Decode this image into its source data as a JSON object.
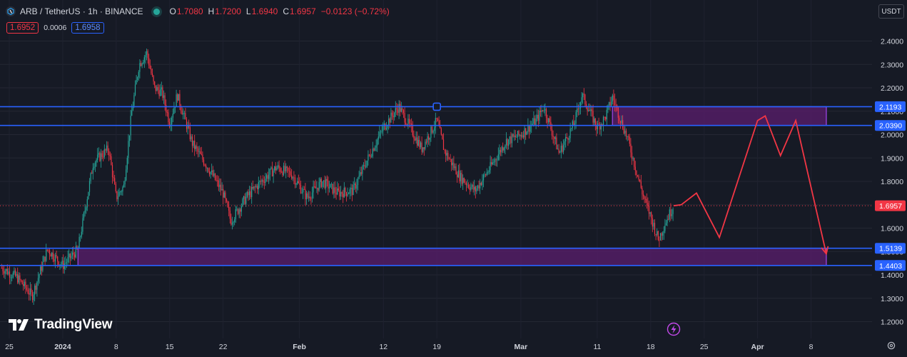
{
  "header": {
    "symbol": "ARB / TetherUS · 1h · BINANCE",
    "ohlc": [
      {
        "key": "O",
        "value": "1.7080"
      },
      {
        "key": "H",
        "value": "1.7200"
      },
      {
        "key": "L",
        "value": "1.6940"
      },
      {
        "key": "C",
        "value": "1.6957"
      }
    ],
    "change": "−0.0123 (−0.72%)",
    "sell_price": "1.6952",
    "spread": "0.0006",
    "buy_price": "1.6958"
  },
  "currency_button": "USDT",
  "brand": "TradingView",
  "colors": {
    "background": "#161a25",
    "up": "#26a69a",
    "down": "#f23645",
    "level_line": "#2962ff",
    "zone_fill": "#5b1e6e",
    "zone_border": "#8e3ecf",
    "projection": "#f23645"
  },
  "chart_data": {
    "type": "candlestick",
    "symbol": "ARB/USDT",
    "interval": "1h",
    "exchange": "BINANCE",
    "x_labels": [
      "25",
      "2024",
      "8",
      "15",
      "22",
      "Feb",
      "12",
      "19",
      "Mar",
      "11",
      "18",
      "25",
      "Apr",
      "8"
    ],
    "y_ticks": [
      "2.4000",
      "2.3000",
      "2.2000",
      "2.1000",
      "2.0000",
      "1.9000",
      "1.8000",
      "1.7000",
      "1.6000",
      "1.5000",
      "1.4000",
      "1.3000",
      "1.2000"
    ],
    "ylim": [
      1.15,
      2.5
    ],
    "price_path": [
      [
        "Dec 24",
        1.43
      ],
      [
        "Dec 26",
        1.39
      ],
      [
        "Dec 28",
        1.31
      ],
      [
        "Dec 30",
        1.51
      ],
      [
        "Jan 1",
        1.44
      ],
      [
        "Jan 3",
        1.51
      ],
      [
        "Jan 5",
        1.88
      ],
      [
        "Jan 7",
        1.94
      ],
      [
        "Jan 8",
        1.73
      ],
      [
        "Jan 9",
        1.78
      ],
      [
        "Jan 10",
        2.09
      ],
      [
        "Jan 11",
        2.3
      ],
      [
        "Jan 12",
        2.35
      ],
      [
        "Jan 13",
        2.2
      ],
      [
        "Jan 14",
        2.18
      ],
      [
        "Jan 15",
        2.05
      ],
      [
        "Jan 16",
        2.17
      ],
      [
        "Jan 18",
        1.96
      ],
      [
        "Jan 20",
        1.86
      ],
      [
        "Jan 22",
        1.75
      ],
      [
        "Jan 23",
        1.63
      ],
      [
        "Jan 25",
        1.73
      ],
      [
        "Jan 27",
        1.8
      ],
      [
        "Jan 29",
        1.86
      ],
      [
        "Jan 31",
        1.83
      ],
      [
        "Feb 2",
        1.73
      ],
      [
        "Feb 4",
        1.8
      ],
      [
        "Feb 6",
        1.75
      ],
      [
        "Feb 8",
        1.76
      ],
      [
        "Feb 10",
        1.9
      ],
      [
        "Feb 12",
        2.03
      ],
      [
        "Feb 14",
        2.12
      ],
      [
        "Feb 16",
        2.0
      ],
      [
        "Feb 17",
        1.94
      ],
      [
        "Feb 19",
        2.06
      ],
      [
        "Feb 20",
        1.93
      ],
      [
        "Feb 22",
        1.82
      ],
      [
        "Feb 24",
        1.76
      ],
      [
        "Feb 26",
        1.86
      ],
      [
        "Feb 28",
        1.97
      ],
      [
        "Mar 1",
        2.0
      ],
      [
        "Mar 3",
        2.06
      ],
      [
        "Mar 4",
        2.12
      ],
      [
        "Mar 6",
        1.92
      ],
      [
        "Mar 8",
        2.05
      ],
      [
        "Mar 9",
        2.17
      ],
      [
        "Mar 10",
        2.1
      ],
      [
        "Mar 11",
        2.03
      ],
      [
        "Mar 12",
        2.07
      ],
      [
        "Mar 13",
        2.16
      ],
      [
        "Mar 14",
        2.07
      ],
      [
        "Mar 15",
        1.98
      ],
      [
        "Mar 16",
        1.86
      ],
      [
        "Mar 17",
        1.74
      ],
      [
        "Mar 18",
        1.65
      ],
      [
        "Mar 19",
        1.55
      ],
      [
        "Mar 20",
        1.63
      ],
      [
        "Mar 21",
        1.6957
      ]
    ],
    "last_price": "1.6957",
    "levels": [
      {
        "label": "2.1193",
        "value": 2.1193
      },
      {
        "label": "2.0390",
        "value": 2.039
      },
      {
        "label": "1.5139",
        "value": 1.5139
      },
      {
        "label": "1.4403",
        "value": 1.4403
      }
    ],
    "zones": [
      {
        "from": "Mar 13",
        "to": "Apr 10",
        "top": 2.1193,
        "bottom": 2.039
      },
      {
        "from": "Jan 3",
        "to": "Apr 10",
        "top": 1.5139,
        "bottom": 1.4403
      }
    ],
    "projection_path": [
      [
        "Mar 21",
        1.6957
      ],
      [
        "Mar 22",
        1.7
      ],
      [
        "Mar 24",
        1.75
      ],
      [
        "Mar 27",
        1.56
      ],
      [
        "Apr 1",
        2.06
      ],
      [
        "Apr 2",
        2.08
      ],
      [
        "Apr 4",
        1.91
      ],
      [
        "Apr 6",
        2.06
      ],
      [
        "Apr 10",
        1.49
      ]
    ],
    "alert_marker": {
      "date": "Feb 19",
      "value": 2.1193
    },
    "grid": true
  }
}
